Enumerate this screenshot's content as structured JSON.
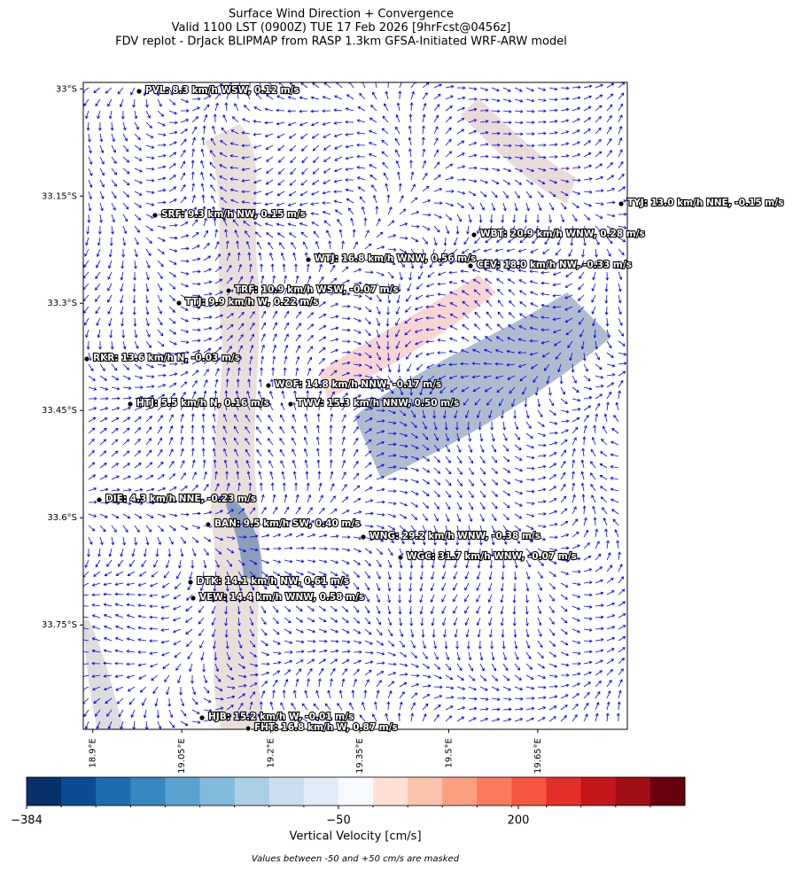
{
  "header": {
    "title_lines": [
      "Surface Wind Direction + Convergence",
      "Valid 1100 LST (0900Z) TUE 17 Feb 2026 [9hrFcst@0456z]",
      "FDV replot - DrJack BLIPMAP from RASP 1.3km GFSA-Initiated WRF-ARW model"
    ]
  },
  "map": {
    "xlim": [
      18.884,
      19.801
    ],
    "ylim": [
      -33.896,
      -32.991
    ],
    "xticks": [
      {
        "value": 18.9,
        "label": "18.9°E"
      },
      {
        "value": 19.05,
        "label": "19.05°E"
      },
      {
        "value": 19.2,
        "label": "19.2°E"
      },
      {
        "value": 19.35,
        "label": "19.35°E"
      },
      {
        "value": 19.5,
        "label": "19.5°E"
      },
      {
        "value": 19.65,
        "label": "19.65°E"
      }
    ],
    "yticks": [
      {
        "value": -33,
        "label": "33°S"
      },
      {
        "value": -33.15,
        "label": "33.15°S"
      },
      {
        "value": -33.3,
        "label": "33.3°S"
      },
      {
        "value": -33.45,
        "label": "33.45°S"
      },
      {
        "value": -33.6,
        "label": "33.6°S"
      },
      {
        "value": -33.75,
        "label": "33.75°S"
      }
    ],
    "vector_color": "#0000ff",
    "stations": [
      "PVL: 8.3 km/h WSW, 0.12 m/s",
      "SRF: 9.3 km/h NW, 0.15 m/s",
      "WTJ: 16.8 km/h WNW, 0.56 m/s",
      "TRF: 10.9 km/h WSW, -0.07 m/s",
      "TTJ: 9.9 km/h W, 0.22 m/s",
      "TYJ: 13.0 km/h NNE, -0.15 m/s",
      "WBT: 20.9 km/h WNW, 0.28 m/s",
      "CEV: 18.0 km/h NW, -0.33 m/s",
      "RKR: 13.6 km/h N, -0.03 m/s",
      "WOF: 14.8 km/h NNW, -0.17 m/s",
      "HTJ: 5.5 km/h N, 0.16 m/s",
      "TWV: 15.3 km/h NNW, 0.50 m/s",
      "DIE: 4.3 km/h NNE, -0.23 m/s",
      "BAN: 9.5 km/h SW, 0.40 m/s",
      "WNG: 29.2 km/h WNW, -0.38 m/s",
      "WGC: 31.7 km/h WNW, -0.07 m/s",
      "DTK: 14.1 km/h NW, 0.61 m/s",
      "VEW: 14.4 km/h WNW, 0.58 m/s",
      "HJB: 15.2 km/h W, -0.01 m/s",
      "FHT: 16.8 km/h W, 0.87 m/s"
    ]
  },
  "colorbar": {
    "label": "Vertical Velocity [cm/s]",
    "ticks": [
      {
        "value": -384,
        "label": "−384"
      },
      {
        "value": -50,
        "label": "−50"
      },
      {
        "value": 200,
        "label": "200"
      }
    ],
    "colors": [
      "#08306b",
      "#0b4d94",
      "#1f6db1",
      "#3787c0",
      "#5aa2cf",
      "#82badb",
      "#abcfe5",
      "#cadef0",
      "#e0ecf8",
      "#f7fbff",
      "#fee1d4",
      "#fcc3ac",
      "#fc9f81",
      "#fb7b5c",
      "#f6563d",
      "#e32f27",
      "#c5161b",
      "#a10e15",
      "#67000d"
    ],
    "note": "Values between -50 and +50 cm/s are masked"
  }
}
